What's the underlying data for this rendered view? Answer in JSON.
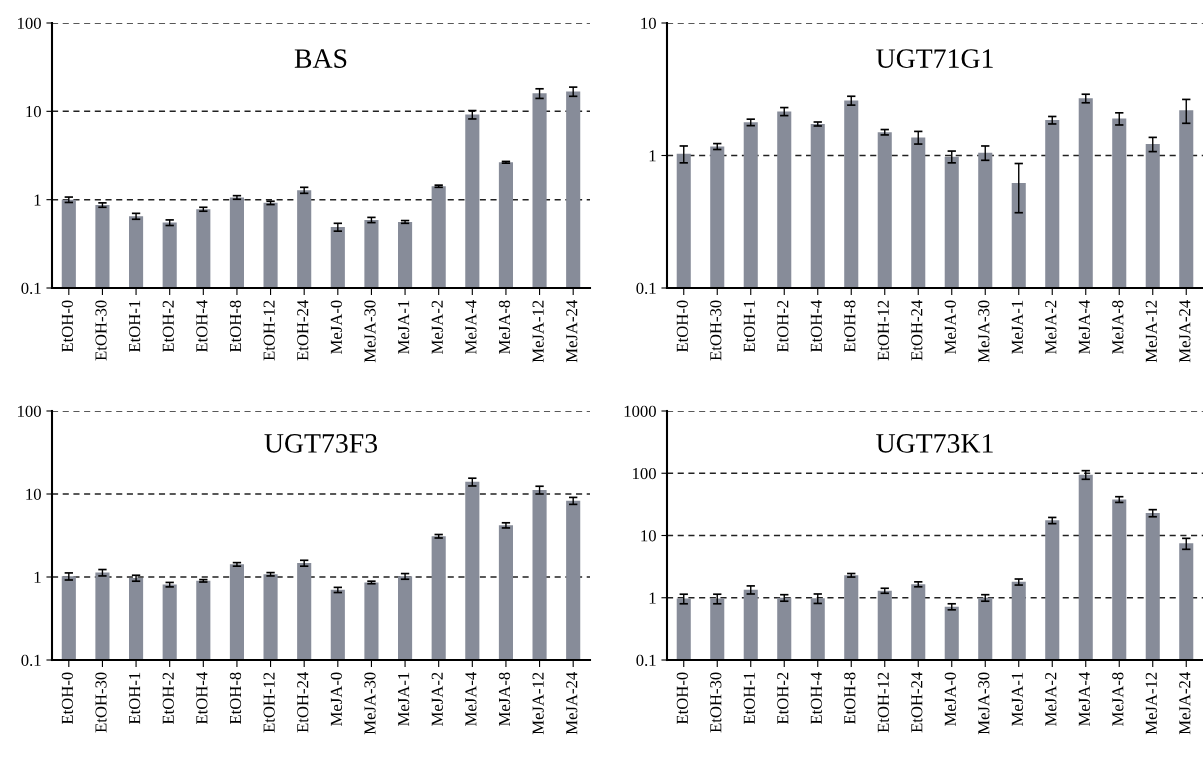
{
  "chart_data": [
    {
      "type": "bar",
      "title": "BAS",
      "log": "y",
      "grid": "y",
      "ylim": [
        0.1,
        100
      ],
      "yticks": [
        0.1,
        1,
        10,
        100
      ],
      "categories": [
        "EtOH-0",
        "EtOH-30",
        "EtOH-1",
        "EtOH-2",
        "EtOH-4",
        "EtOH-8",
        "EtOH-12",
        "EtOH-24",
        "MeJA-0",
        "MeJA-30",
        "MeJA-1",
        "MeJA-2",
        "MeJA-4",
        "MeJA-8",
        "MeJA-12",
        "MeJA-24"
      ],
      "series": [
        {
          "color": "#878c99",
          "values": [
            1.0,
            0.87,
            0.65,
            0.55,
            0.78,
            1.06,
            0.92,
            1.28,
            0.49,
            0.59,
            0.56,
            1.42,
            9.2,
            2.65,
            16,
            16.8
          ],
          "errors": [
            0.07,
            0.05,
            0.05,
            0.04,
            0.04,
            0.05,
            0.04,
            0.1,
            0.05,
            0.04,
            0.02,
            0.04,
            1.0,
            0.06,
            2,
            2
          ]
        }
      ]
    },
    {
      "type": "bar",
      "title": "UGT71G1",
      "log": "y",
      "grid": "y",
      "ylim": [
        0.1,
        10
      ],
      "yticks": [
        0.1,
        1,
        10
      ],
      "categories": [
        "EtOH-0",
        "EtOH-30",
        "EtOH-1",
        "EtOH-2",
        "EtOH-4",
        "EtOH-8",
        "EtOH-12",
        "EtOH-24",
        "MeJA-0",
        "MeJA-30",
        "MeJA-1",
        "MeJA-2",
        "MeJA-4",
        "MeJA-8",
        "MeJA-12",
        "MeJA-24"
      ],
      "series": [
        {
          "color": "#878c99",
          "values": [
            1.03,
            1.17,
            1.78,
            2.15,
            1.73,
            2.6,
            1.5,
            1.37,
            0.98,
            1.05,
            0.62,
            1.85,
            2.7,
            1.9,
            1.22,
            2.2
          ],
          "errors": [
            0.15,
            0.06,
            0.1,
            0.15,
            0.06,
            0.2,
            0.07,
            0.15,
            0.1,
            0.13,
            0.25,
            0.12,
            0.2,
            0.2,
            0.15,
            0.45
          ]
        }
      ]
    },
    {
      "type": "bar",
      "title": "UGT73F3",
      "log": "y",
      "grid": "y",
      "ylim": [
        0.1,
        100
      ],
      "yticks": [
        0.1,
        1,
        10,
        100
      ],
      "categories": [
        "EtOH-0",
        "EtOH-30",
        "EtOH-1",
        "EtOH-2",
        "EtOH-4",
        "EtOH-8",
        "EtOH-12",
        "EtOH-24",
        "MeJA-0",
        "MeJA-30",
        "MeJA-1",
        "MeJA-2",
        "MeJA-4",
        "MeJA-8",
        "MeJA-12",
        "MeJA-24"
      ],
      "series": [
        {
          "color": "#878c99",
          "values": [
            1.02,
            1.13,
            0.97,
            0.81,
            0.9,
            1.42,
            1.08,
            1.47,
            0.7,
            0.86,
            1.02,
            3.1,
            14,
            4.2,
            11.2,
            8.3
          ],
          "errors": [
            0.1,
            0.1,
            0.08,
            0.05,
            0.03,
            0.07,
            0.05,
            0.12,
            0.05,
            0.03,
            0.08,
            0.15,
            1.5,
            0.3,
            1.2,
            0.8
          ]
        }
      ]
    },
    {
      "type": "bar",
      "title": "UGT73K1",
      "log": "y",
      "grid": "y",
      "ylim": [
        0.1,
        1000
      ],
      "yticks": [
        0.1,
        1,
        10,
        100,
        1000
      ],
      "categories": [
        "EtOH-0",
        "EtOH-30",
        "EtOH-1",
        "EtOH-2",
        "EtOH-4",
        "EtOH-8",
        "EtOH-12",
        "EtOH-24",
        "MeJA-0",
        "MeJA-30",
        "MeJA-1",
        "MeJA-2",
        "MeJA-4",
        "MeJA-8",
        "MeJA-12",
        "MeJA-24"
      ],
      "series": [
        {
          "color": "#878c99",
          "values": [
            0.97,
            0.97,
            1.35,
            1.0,
            0.98,
            2.3,
            1.3,
            1.65,
            0.72,
            1.0,
            1.8,
            17.5,
            95,
            38,
            23,
            7.5
          ],
          "errors": [
            0.17,
            0.17,
            0.2,
            0.12,
            0.17,
            0.15,
            0.12,
            0.15,
            0.08,
            0.12,
            0.2,
            2,
            15,
            4,
            3,
            1.5
          ]
        }
      ]
    }
  ]
}
